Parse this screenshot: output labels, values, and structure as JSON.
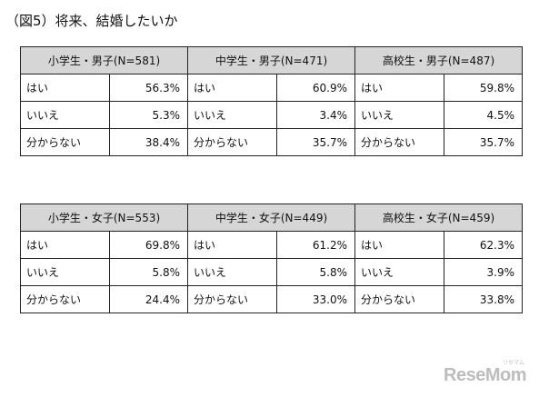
{
  "figure_title": "（図5）将来、結婚したいか",
  "groups": [
    {
      "header": "小学生・男子(N=581)",
      "rows": [
        {
          "label": "はい",
          "value": "56.3%"
        },
        {
          "label": "いいえ",
          "value": "5.3%"
        },
        {
          "label": "分からない",
          "value": "38.4%"
        }
      ]
    },
    {
      "header": "中学生・男子(N=471)",
      "rows": [
        {
          "label": "はい",
          "value": "60.9%"
        },
        {
          "label": "いいえ",
          "value": "3.4%"
        },
        {
          "label": "分からない",
          "value": "35.7%"
        }
      ]
    },
    {
      "header": "高校生・男子(N=487)",
      "rows": [
        {
          "label": "はい",
          "value": "59.8%"
        },
        {
          "label": "いいえ",
          "value": "4.5%"
        },
        {
          "label": "分からない",
          "value": "35.7%"
        }
      ]
    },
    {
      "header": "小学生・女子(N=553)",
      "rows": [
        {
          "label": "はい",
          "value": "69.8%"
        },
        {
          "label": "いいえ",
          "value": "5.8%"
        },
        {
          "label": "分からない",
          "value": "24.4%"
        }
      ]
    },
    {
      "header": "中学生・女子(N=449)",
      "rows": [
        {
          "label": "はい",
          "value": "61.2%"
        },
        {
          "label": "いいえ",
          "value": "5.8%"
        },
        {
          "label": "分からない",
          "value": "33.0%"
        }
      ]
    },
    {
      "header": "高校生・女子(N=459)",
      "rows": [
        {
          "label": "はい",
          "value": "62.3%"
        },
        {
          "label": "いいえ",
          "value": "3.9%"
        },
        {
          "label": "分からない",
          "value": "33.8%"
        }
      ]
    }
  ],
  "watermark": {
    "text": "ReseMom",
    "ruby": "リセマム"
  },
  "colors": {
    "header_fill": "#d6d6d6",
    "border": "#222222"
  }
}
